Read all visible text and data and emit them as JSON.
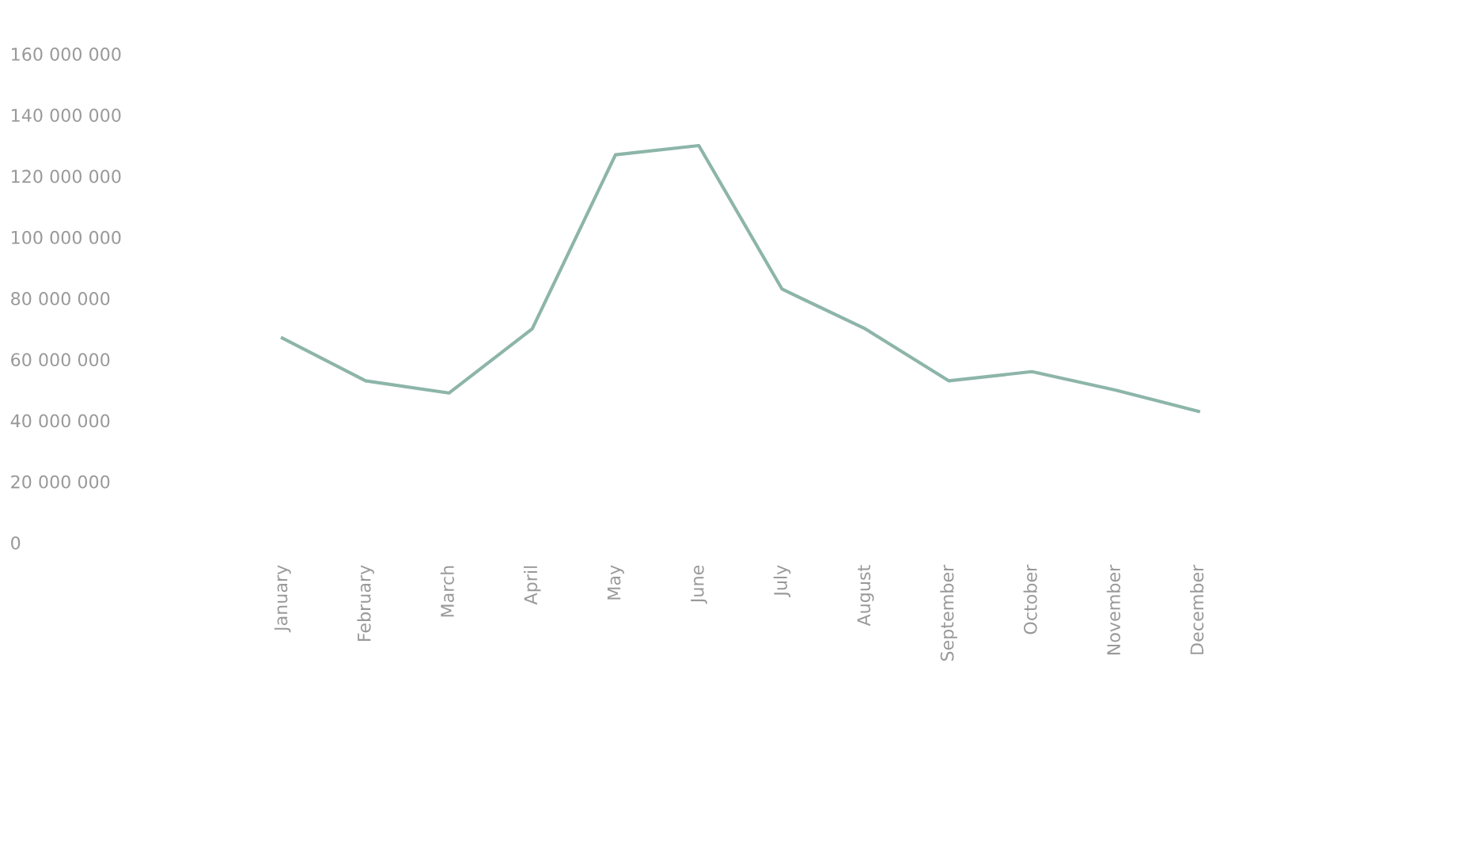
{
  "chart_data": {
    "type": "line",
    "categories": [
      "January",
      "February",
      "March",
      "April",
      "May",
      "June",
      "July",
      "August",
      "September",
      "October",
      "November",
      "December"
    ],
    "series": [
      {
        "color": "#8db5a9",
        "values": [
          67000000,
          53000000,
          49000000,
          70000000,
          127000000,
          130000000,
          83000000,
          70000000,
          53000000,
          56000000,
          50000000,
          43000000
        ]
      }
    ],
    "ylim": [
      0,
      160000000
    ],
    "yticks": [
      {
        "value": 0,
        "label": "0"
      },
      {
        "value": 20000000,
        "label": "20 000 000"
      },
      {
        "value": 40000000,
        "label": "40 000 000"
      },
      {
        "value": 60000000,
        "label": "60 000 000"
      },
      {
        "value": 80000000,
        "label": "80 000 000"
      },
      {
        "value": 100000000,
        "label": "100 000 000"
      },
      {
        "value": 120000000,
        "label": "120 000 000"
      },
      {
        "value": 140000000,
        "label": "140 000 000"
      },
      {
        "value": 160000000,
        "label": "160 000 000"
      }
    ],
    "grid": false,
    "legend": false,
    "marker": "none",
    "line_style": "solid"
  }
}
